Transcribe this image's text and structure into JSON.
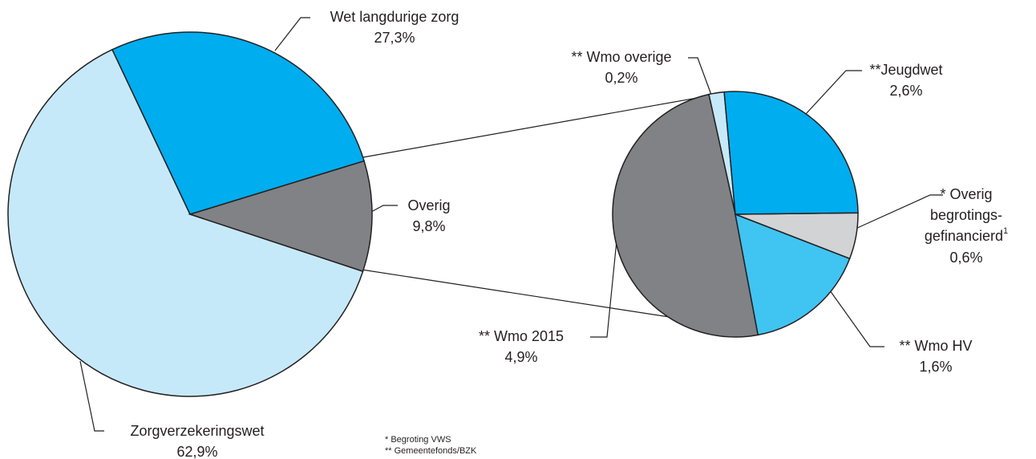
{
  "chart_data": [
    {
      "type": "pie",
      "categories": [
        [
          "Wet langdurige zorg"
        ],
        [
          "Overig"
        ],
        [
          "Zorgverzekeringswet"
        ]
      ],
      "values": [
        27.3,
        9.8,
        62.9
      ],
      "value_labels": [
        "27,3%",
        "9,8%",
        "62,9%"
      ],
      "colors": [
        "#00adef",
        "#808285",
        "#c6e9fa"
      ]
    },
    {
      "type": "pie",
      "categories": [
        [
          "**Jeugdwet"
        ],
        [
          "* Overig",
          "begrotings-",
          "gefinancierd"
        ],
        [
          "** Wmo HV"
        ],
        [
          "** Wmo 2015"
        ],
        [
          "** Wmo overige"
        ]
      ],
      "footnote_marks": [
        null,
        "1",
        null,
        null,
        null
      ],
      "values": [
        2.6,
        0.6,
        1.6,
        4.9,
        0.2
      ],
      "value_labels": [
        "2,6%",
        "0,6%",
        "1,6%",
        "4,9%",
        "0,2%"
      ],
      "colors": [
        "#00adef",
        "#d1d3d4",
        "#40c4f2",
        "#808285",
        "#c6e9fa"
      ]
    }
  ],
  "notes": [
    "* Begroting VWS",
    "** Gemeentefonds/BZK"
  ]
}
